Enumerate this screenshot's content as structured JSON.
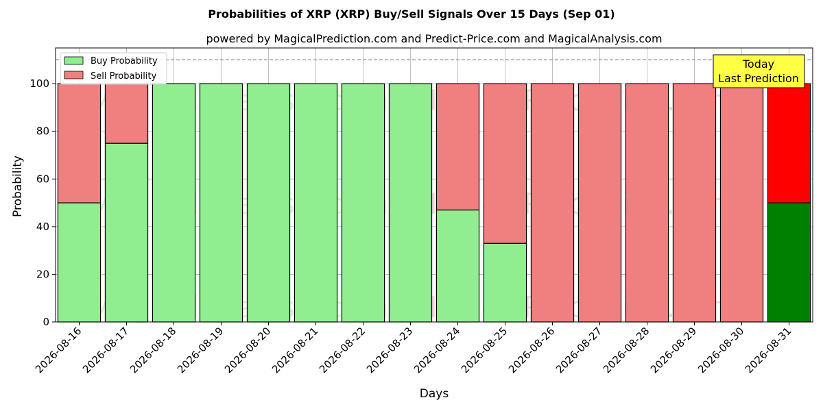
{
  "chart_data": {
    "type": "bar",
    "stacked": true,
    "title": "Probabilities of XRP (XRP) Buy/Sell Signals Over 15 Days (Sep 01)",
    "subtitle": "powered by MagicalPrediction.com and Predict-Price.com and MagicalAnalysis.com",
    "xlabel": "Days",
    "ylabel": "Probability",
    "ylim": [
      0,
      115
    ],
    "yticks": [
      0,
      20,
      40,
      60,
      80,
      100
    ],
    "reference_line": 110,
    "grid": true,
    "legend_position": "top-left",
    "categories": [
      "2026-08-16",
      "2026-08-17",
      "2026-08-18",
      "2026-08-19",
      "2026-08-20",
      "2026-08-21",
      "2026-08-22",
      "2026-08-23",
      "2026-08-24",
      "2026-08-25",
      "2026-08-26",
      "2026-08-27",
      "2026-08-28",
      "2026-08-29",
      "2026-08-30",
      "2026-08-31"
    ],
    "series": [
      {
        "name": "Buy Probability",
        "color": "#90ee90",
        "highlight_color": "#008000",
        "values": [
          50,
          75,
          100,
          100,
          100,
          100,
          100,
          100,
          47,
          33,
          0,
          0,
          0,
          0,
          0,
          50
        ]
      },
      {
        "name": "Sell Probability",
        "color": "#f08080",
        "highlight_color": "#ff0000",
        "values": [
          50,
          25,
          0,
          0,
          0,
          0,
          0,
          0,
          53,
          67,
          100,
          100,
          100,
          100,
          100,
          50
        ]
      }
    ],
    "highlight_index": 15,
    "annotation": {
      "line1": "Today",
      "line2": "Last Prediction",
      "background": "#ffff44"
    },
    "watermarks": [
      "MagicalAnalysis.com",
      "MagicalPrediction.com"
    ]
  }
}
